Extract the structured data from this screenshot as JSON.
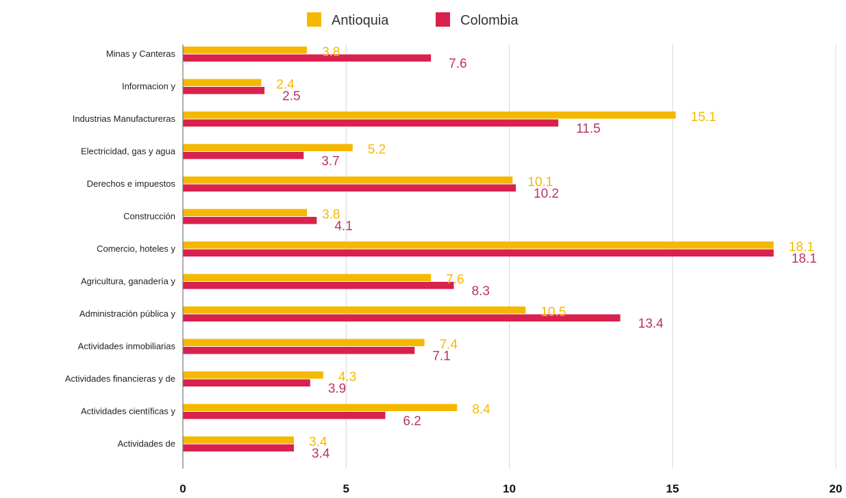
{
  "chart_data": {
    "type": "bar",
    "orientation": "horizontal",
    "categories": [
      "Minas y Canteras",
      "Informacion y",
      "Industrias Manufactureras",
      "Electricidad, gas y agua",
      "Derechos e impuestos",
      "Construcción",
      "Comercio, hoteles y",
      "Agricultura, ganadería y",
      "Administración pública y",
      "Actividades inmobiliarias",
      "Actividades financieras y de",
      "Actividades científicas y",
      "Actividades de"
    ],
    "series": [
      {
        "name": "Antioquia",
        "color": "#F5B800",
        "values": [
          3.8,
          2.4,
          15.1,
          5.2,
          10.1,
          3.8,
          18.1,
          7.6,
          10.5,
          7.4,
          4.3,
          8.4,
          3.4
        ]
      },
      {
        "name": "Colombia",
        "color": "#D9214E",
        "values": [
          7.6,
          2.5,
          11.5,
          3.7,
          10.2,
          4.1,
          18.1,
          8.3,
          13.4,
          7.1,
          3.9,
          6.2,
          3.4
        ]
      }
    ],
    "xlim": [
      0,
      20
    ],
    "xticks": [
      "0",
      "5",
      "10",
      "15",
      "20"
    ],
    "xlabel": "",
    "ylabel": "",
    "title": "",
    "legend_position": "top",
    "grid": "vertical",
    "grid_color": "#D6D6D6",
    "colombia_label_color": "#B8336A"
  }
}
